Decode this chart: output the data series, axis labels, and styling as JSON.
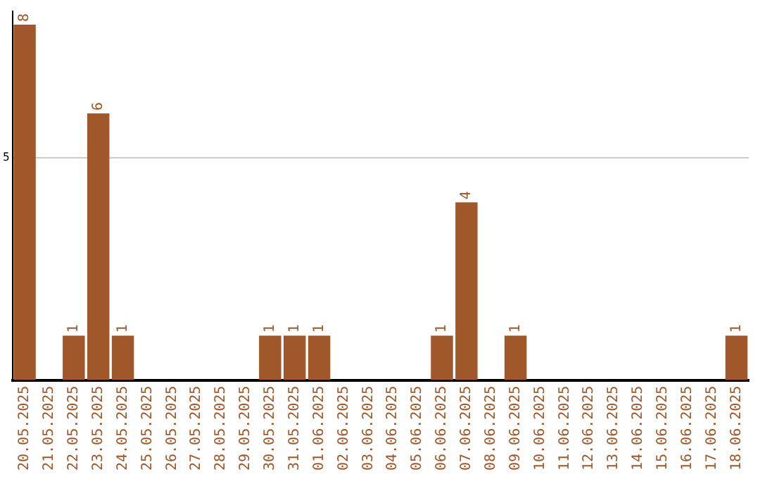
{
  "chart_data": {
    "type": "bar",
    "categories": [
      "20.05.2025",
      "21.05.2025",
      "22.05.2025",
      "23.05.2025",
      "24.05.2025",
      "25.05.2025",
      "26.05.2025",
      "27.05.2025",
      "28.05.2025",
      "29.05.2025",
      "30.05.2025",
      "31.05.2025",
      "01.06.2025",
      "02.06.2025",
      "03.06.2025",
      "04.06.2025",
      "05.06.2025",
      "06.06.2025",
      "07.06.2025",
      "08.06.2025",
      "09.06.2025",
      "10.06.2025",
      "11.06.2025",
      "12.06.2025",
      "13.06.2025",
      "14.06.2025",
      "15.06.2025",
      "16.06.2025",
      "17.06.2025",
      "18.06.2025"
    ],
    "values": [
      8,
      0,
      1,
      6,
      1,
      0,
      0,
      0,
      0,
      0,
      1,
      1,
      1,
      0,
      0,
      0,
      0,
      1,
      4,
      0,
      1,
      0,
      0,
      0,
      0,
      0,
      0,
      0,
      0,
      1
    ],
    "value_labels": [
      "8",
      null,
      "1",
      "6",
      "1",
      null,
      null,
      null,
      null,
      null,
      "1",
      "1",
      "1",
      null,
      null,
      null,
      null,
      "1",
      "4",
      null,
      "1",
      null,
      null,
      null,
      null,
      null,
      null,
      null,
      null,
      "1"
    ],
    "color": "#a0582a",
    "ylim": [
      0,
      8.3
    ],
    "yticks": [
      5
    ],
    "grid": "y",
    "legend": false
  }
}
